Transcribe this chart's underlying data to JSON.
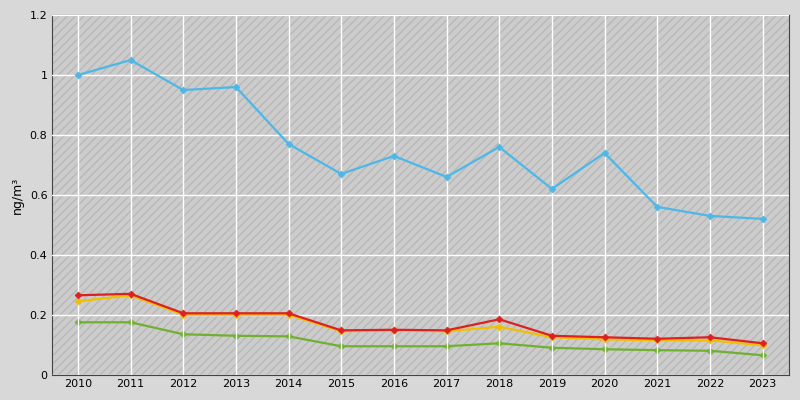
{
  "years": [
    2010,
    2011,
    2012,
    2013,
    2014,
    2015,
    2016,
    2017,
    2018,
    2019,
    2020,
    2021,
    2022,
    2023
  ],
  "blue": [
    1.0,
    1.05,
    0.95,
    0.96,
    0.77,
    0.67,
    0.73,
    0.66,
    0.76,
    0.62,
    0.74,
    0.56,
    0.53,
    0.52
  ],
  "red": [
    0.265,
    0.27,
    0.205,
    0.205,
    0.205,
    0.148,
    0.15,
    0.148,
    0.185,
    0.13,
    0.125,
    0.12,
    0.125,
    0.105
  ],
  "yellow": [
    0.245,
    0.265,
    0.2,
    0.2,
    0.2,
    0.145,
    0.148,
    0.145,
    0.16,
    0.125,
    0.118,
    0.115,
    0.115,
    0.098
  ],
  "green": [
    0.175,
    0.175,
    0.135,
    0.13,
    0.128,
    0.095,
    0.095,
    0.095,
    0.105,
    0.09,
    0.085,
    0.082,
    0.08,
    0.065
  ],
  "blue_color": "#4db8e8",
  "red_color": "#dd2020",
  "yellow_color": "#f0c000",
  "green_color": "#70b030",
  "outer_bg": "#d8d8d8",
  "plot_bg": "#d4d4d4",
  "hatch_color": "#c0c0c0",
  "grid_color": "#ffffff",
  "ylabel": "ng/m³",
  "ylim": [
    0,
    1.2
  ],
  "yticks": [
    0,
    0.2,
    0.4,
    0.6,
    0.8,
    1.0,
    1.2
  ],
  "marker": "D",
  "marker_size": 3.5,
  "linewidth": 1.6,
  "figsize": [
    8.0,
    4.0
  ],
  "dpi": 100
}
